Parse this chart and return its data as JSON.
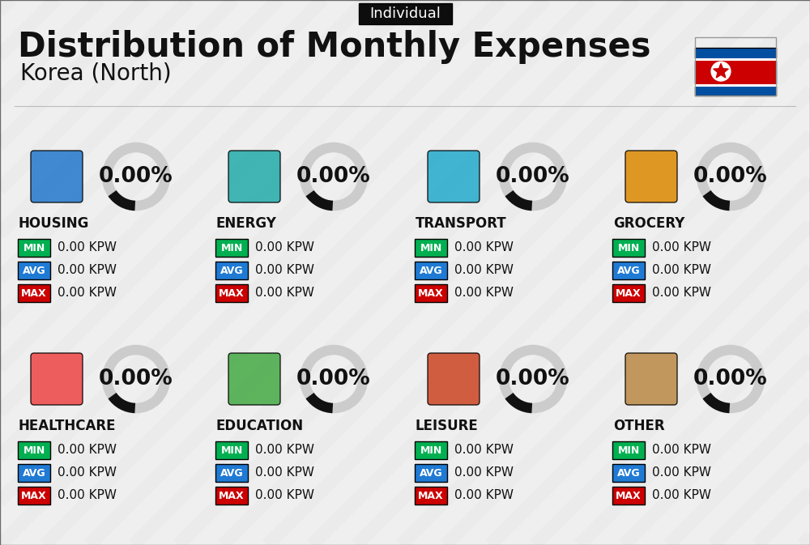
{
  "title": "Distribution of Monthly Expenses",
  "subtitle": "Korea (North)",
  "badge_text": "Individual",
  "bg_color": "#efefef",
  "categories": [
    {
      "name": "HOUSING",
      "pct": "0.00%",
      "min": "0.00 KPW",
      "avg": "0.00 KPW",
      "max": "0.00 KPW"
    },
    {
      "name": "ENERGY",
      "pct": "0.00%",
      "min": "0.00 KPW",
      "avg": "0.00 KPW",
      "max": "0.00 KPW"
    },
    {
      "name": "TRANSPORT",
      "pct": "0.00%",
      "min": "0.00 KPW",
      "avg": "0.00 KPW",
      "max": "0.00 KPW"
    },
    {
      "name": "GROCERY",
      "pct": "0.00%",
      "min": "0.00 KPW",
      "avg": "0.00 KPW",
      "max": "0.00 KPW"
    },
    {
      "name": "HEALTHCARE",
      "pct": "0.00%",
      "min": "0.00 KPW",
      "avg": "0.00 KPW",
      "max": "0.00 KPW"
    },
    {
      "name": "EDUCATION",
      "pct": "0.00%",
      "min": "0.00 KPW",
      "avg": "0.00 KPW",
      "max": "0.00 KPW"
    },
    {
      "name": "LEISURE",
      "pct": "0.00%",
      "min": "0.00 KPW",
      "avg": "0.00 KPW",
      "max": "0.00 KPW"
    },
    {
      "name": "OTHER",
      "pct": "0.00%",
      "min": "0.00 KPW",
      "avg": "0.00 KPW",
      "max": "0.00 KPW"
    }
  ],
  "min_color": "#00b050",
  "avg_color": "#1f7ad4",
  "max_color": "#cc0000",
  "text_color": "#111111",
  "title_fontsize": 30,
  "subtitle_fontsize": 20,
  "badge_fontsize": 13,
  "cat_fontsize": 12,
  "val_fontsize": 11,
  "pct_fontsize": 19,
  "ring_color_bg": "#cccccc",
  "ring_color_fg": "#111111",
  "stripe_color": "#e2e2e2",
  "grid_rows": 2,
  "grid_cols": 4,
  "flag_blue": "#024fa2",
  "flag_red": "#cc0001"
}
